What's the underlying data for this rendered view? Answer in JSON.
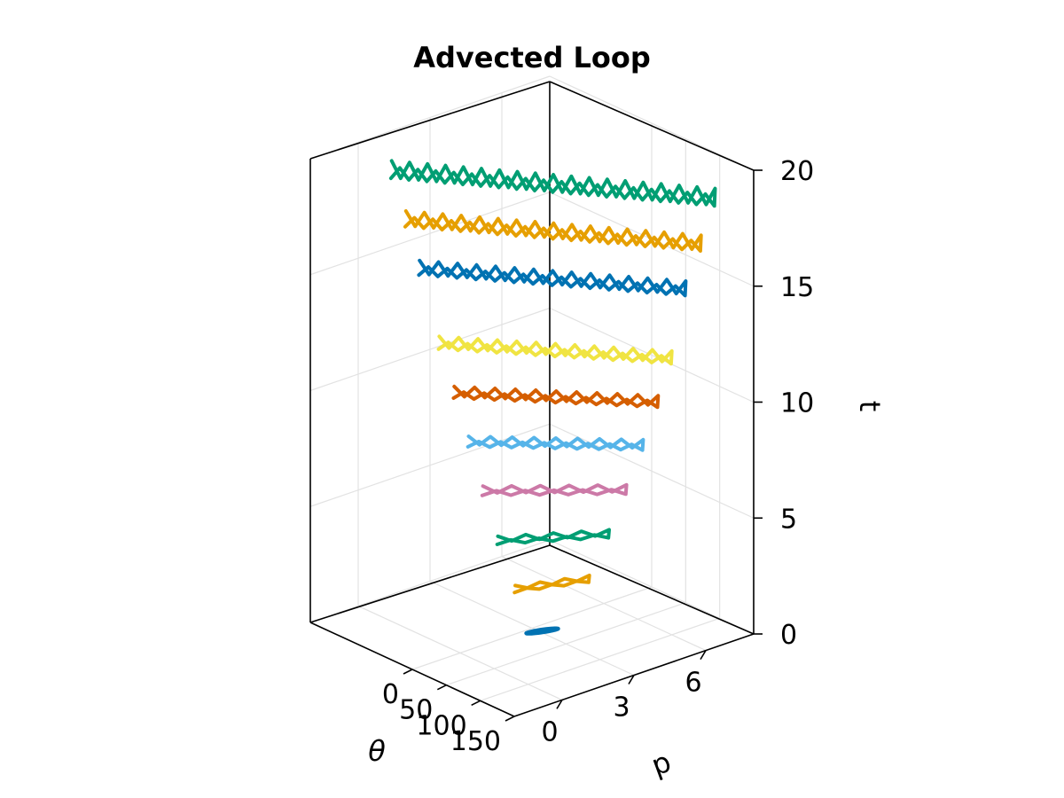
{
  "chart_data": {
    "type": "line",
    "title": "Advected Loop",
    "xlabel": "θ",
    "ylabel": "p",
    "zlabel": "t",
    "xlim": [
      0,
      150
    ],
    "ylim": [
      -2,
      8
    ],
    "zlim": [
      0,
      20
    ],
    "xticks": [
      "0",
      "50",
      "100",
      "150"
    ],
    "yticks": [
      "0",
      "3",
      "6"
    ],
    "zticks": [
      "0",
      "5",
      "10",
      "15",
      "20"
    ],
    "grid": true,
    "series": [
      {
        "t": 0,
        "theta_range": [
          7,
          16
        ],
        "p_range": [
          2.6,
          3.6
        ],
        "zigzag": 0,
        "amp": 0,
        "color": "#0072b2"
      },
      {
        "t": 2,
        "theta_range": [
          0,
          28
        ],
        "p_range": [
          2.3,
          4.6
        ],
        "zigzag": 3,
        "amp": 0.6,
        "color": "#e69f00"
      },
      {
        "t": 4,
        "theta_range": [
          -15,
          43
        ],
        "p_range": [
          2.0,
          5.0
        ],
        "zigzag": 4,
        "amp": 0.8,
        "color": "#009e73"
      },
      {
        "t": 6,
        "theta_range": [
          -30,
          58
        ],
        "p_range": [
          1.8,
          5.3
        ],
        "zigzag": 5,
        "amp": 1.0,
        "color": "#cc79a7"
      },
      {
        "t": 8,
        "theta_range": [
          -44,
          72
        ],
        "p_range": [
          1.6,
          5.6
        ],
        "zigzag": 8,
        "amp": 1.2,
        "color": "#56b4e9"
      },
      {
        "t": 10,
        "theta_range": [
          -58,
          87
        ],
        "p_range": [
          1.4,
          5.8
        ],
        "zigzag": 10,
        "amp": 1.4,
        "color": "#d55e00"
      },
      {
        "t": 12,
        "theta_range": [
          -73,
          100
        ],
        "p_range": [
          1.2,
          6.0
        ],
        "zigzag": 12,
        "amp": 1.6,
        "color": "#f0e442"
      },
      {
        "t": 15,
        "theta_range": [
          -95,
          110
        ],
        "p_range": [
          1.0,
          6.3
        ],
        "zigzag": 14,
        "amp": 1.9,
        "color": "#0072b2"
      },
      {
        "t": 17,
        "theta_range": [
          -108,
          122
        ],
        "p_range": [
          0.8,
          6.6
        ],
        "zigzag": 16,
        "amp": 2.1,
        "color": "#e69f00"
      },
      {
        "t": 19,
        "theta_range": [
          -122,
          132
        ],
        "p_range": [
          0.6,
          6.9
        ],
        "zigzag": 18,
        "amp": 2.4,
        "color": "#009e73"
      }
    ]
  }
}
